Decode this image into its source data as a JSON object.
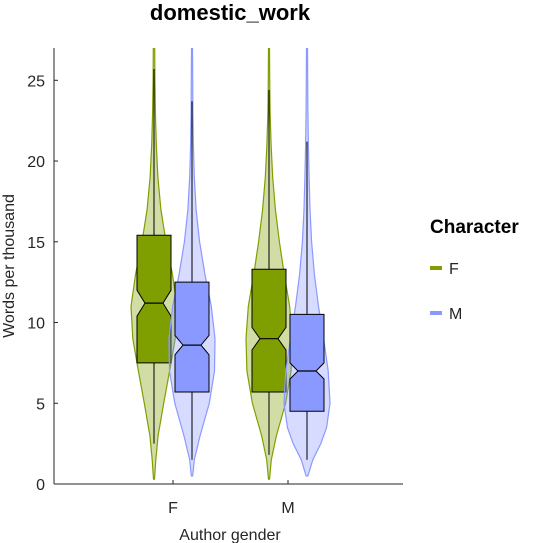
{
  "chart_data": {
    "type": "violin",
    "title": "domestic_work",
    "xlabel": "Author gender",
    "ylabel": "Words per thousand",
    "ylim": [
      0,
      27
    ],
    "yticks": [
      0,
      5,
      10,
      15,
      20,
      25
    ],
    "categories": [
      "F",
      "M"
    ],
    "grid": false,
    "legend": {
      "title": "Character",
      "placement": "right",
      "entries": [
        {
          "label": "F",
          "color": "#7f9f00"
        },
        {
          "label": "M",
          "color": "#8a99ff"
        }
      ]
    },
    "series": [
      {
        "name": "F",
        "color": "#7f9f00",
        "boxes": [
          {
            "category": "F",
            "whisker_low": 2.5,
            "q1": 7.5,
            "median": 11.2,
            "q3": 15.4,
            "whisker_high": 25.7,
            "notch_low": 10.4,
            "notch_high": 12.0,
            "violin_min": 0.3,
            "violin_max": 27,
            "density": [
              [
                0.3,
                0.02
              ],
              [
                1.5,
                0.08
              ],
              [
                3,
                0.18
              ],
              [
                5,
                0.42
              ],
              [
                7,
                0.68
              ],
              [
                9,
                0.92
              ],
              [
                11,
                1.0
              ],
              [
                13,
                0.8
              ],
              [
                15,
                0.52
              ],
              [
                17,
                0.3
              ],
              [
                19,
                0.17
              ],
              [
                21,
                0.1
              ],
              [
                23,
                0.06
              ],
              [
                25,
                0.04
              ],
              [
                27,
                0.03
              ]
            ]
          },
          {
            "category": "M",
            "whisker_low": 1.8,
            "q1": 5.7,
            "median": 9.0,
            "q3": 13.3,
            "whisker_high": 24.4,
            "notch_low": 8.3,
            "notch_high": 9.7,
            "violin_min": 0.3,
            "violin_max": 27,
            "density": [
              [
                0.3,
                0.02
              ],
              [
                1.5,
                0.1
              ],
              [
                3,
                0.32
              ],
              [
                5,
                0.72
              ],
              [
                7,
                0.96
              ],
              [
                9,
                1.0
              ],
              [
                11,
                0.9
              ],
              [
                13,
                0.66
              ],
              [
                15,
                0.45
              ],
              [
                17,
                0.28
              ],
              [
                19,
                0.16
              ],
              [
                21,
                0.09
              ],
              [
                23,
                0.05
              ],
              [
                25,
                0.03
              ],
              [
                27,
                0.02
              ]
            ]
          }
        ]
      },
      {
        "name": "M",
        "color": "#8a99ff",
        "boxes": [
          {
            "category": "F",
            "whisker_low": 1.5,
            "q1": 5.7,
            "median": 8.6,
            "q3": 12.5,
            "whisker_high": 23.7,
            "notch_low": 8.0,
            "notch_high": 9.2,
            "violin_min": 0.5,
            "violin_max": 27,
            "density": [
              [
                0.5,
                0.03
              ],
              [
                1.5,
                0.1
              ],
              [
                3,
                0.35
              ],
              [
                5,
                0.75
              ],
              [
                7,
                0.98
              ],
              [
                9,
                1.0
              ],
              [
                11,
                0.84
              ],
              [
                13,
                0.56
              ],
              [
                15,
                0.33
              ],
              [
                17,
                0.18
              ],
              [
                19,
                0.1
              ],
              [
                21,
                0.06
              ],
              [
                23,
                0.04
              ],
              [
                25,
                0.03
              ],
              [
                27,
                0.02
              ]
            ]
          },
          {
            "category": "M",
            "whisker_low": 1.5,
            "q1": 4.5,
            "median": 7.0,
            "q3": 10.5,
            "whisker_high": 21.2,
            "notch_low": 6.5,
            "notch_high": 7.5,
            "violin_min": 0.5,
            "violin_max": 27,
            "density": [
              [
                0.5,
                0.04
              ],
              [
                1.5,
                0.25
              ],
              [
                2.5,
                0.6
              ],
              [
                3.5,
                0.85
              ],
              [
                5,
                1.0
              ],
              [
                7,
                0.92
              ],
              [
                9,
                0.72
              ],
              [
                11,
                0.5
              ],
              [
                13,
                0.32
              ],
              [
                15,
                0.2
              ],
              [
                17,
                0.13
              ],
              [
                19,
                0.09
              ],
              [
                21,
                0.06
              ],
              [
                23,
                0.04
              ],
              [
                25,
                0.03
              ],
              [
                27,
                0.02
              ]
            ]
          }
        ]
      }
    ]
  }
}
